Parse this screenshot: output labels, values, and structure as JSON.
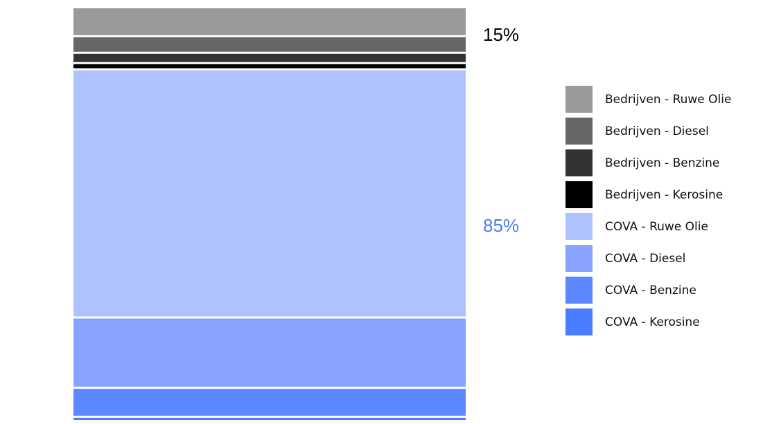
{
  "chart_data": {
    "type": "stacked_bar",
    "series": [
      {
        "name": "Bedrijven - Ruwe Olie",
        "color": "#9a9a9a",
        "values": [
          7
        ]
      },
      {
        "name": "Bedrijven - Diesel",
        "color": "#666666",
        "values": [
          4
        ]
      },
      {
        "name": "Bedrijven - Benzine",
        "color": "#333333",
        "values": [
          2.5
        ]
      },
      {
        "name": "Bedrijven - Kerosine",
        "color": "#000000",
        "values": [
          1.5
        ]
      },
      {
        "name": "COVA - Ruwe Olie",
        "color": "#adc2ff",
        "values": [
          60
        ]
      },
      {
        "name": "COVA - Diesel",
        "color": "#85a3ff",
        "values": [
          17
        ]
      },
      {
        "name": "COVA - Benzine",
        "color": "#5c87ff",
        "values": [
          7
        ]
      },
      {
        "name": "COVA - Kerosine",
        "color": "#4a7cff",
        "values": [
          1
        ]
      }
    ],
    "ylim": [
      0,
      100
    ],
    "group_totals": {
      "values": [
        15,
        85
      ],
      "value_labels": [
        "15%",
        "85%"
      ],
      "colors": [
        "#000000",
        "#4a7cf0"
      ]
    }
  }
}
